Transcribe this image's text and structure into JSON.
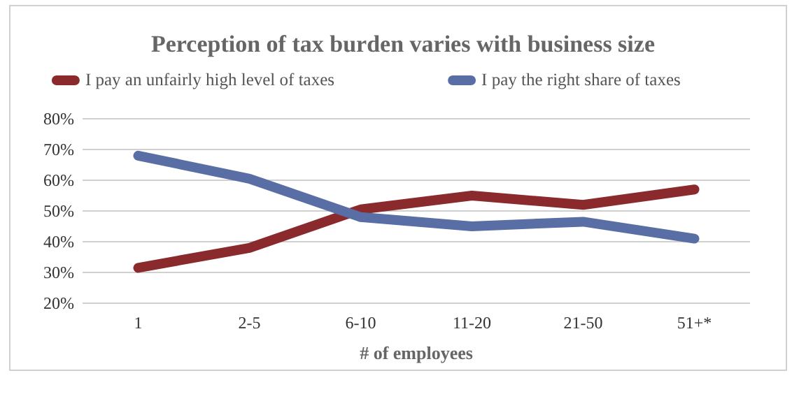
{
  "chart_data": {
    "type": "line",
    "title": "Perception of tax burden varies with business size",
    "xlabel": "# of employees",
    "categories": [
      "1",
      "2-5",
      "6-10",
      "11-20",
      "21-50",
      "51+*"
    ],
    "series": [
      {
        "name": "I pay an unfairly high level of taxes",
        "color": "#8b2a2c",
        "values": [
          31.5,
          38,
          50.5,
          55,
          52,
          57
        ]
      },
      {
        "name": "I pay the right share of taxes",
        "color": "#5a6ea6",
        "values": [
          68,
          60.5,
          48,
          45,
          46.5,
          41
        ]
      }
    ],
    "ylim": [
      20,
      80
    ],
    "yticks": [
      {
        "value": 20,
        "label": "20%"
      },
      {
        "value": 30,
        "label": "30%"
      },
      {
        "value": 40,
        "label": "40%"
      },
      {
        "value": 50,
        "label": "50%"
      },
      {
        "value": 60,
        "label": "60%"
      },
      {
        "value": 70,
        "label": "70%"
      },
      {
        "value": 80,
        "label": "80%"
      }
    ],
    "grid": "y",
    "legend": "top",
    "marker": "none",
    "line_style": "solid"
  }
}
